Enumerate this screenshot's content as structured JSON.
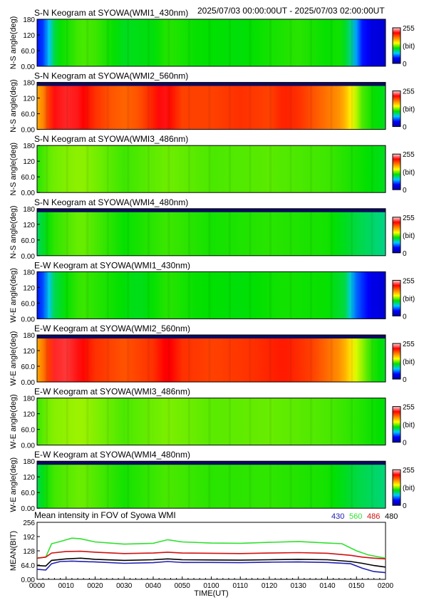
{
  "header": {
    "time_range": "2025/07/03 00:00:00UT - 2025/07/03 02:00:00UT"
  },
  "colors": {
    "colormap": [
      "#0000a0",
      "#0000ff",
      "#00c8ff",
      "#00e000",
      "#ffff00",
      "#ff8000",
      "#ff0000",
      "#ffd8d8"
    ],
    "series_430": "#2020b0",
    "series_560": "#30e030",
    "series_486": "#d01010",
    "series_480": "#000000"
  },
  "colorbar": {
    "max_label": "255",
    "unit_label": "(bit)",
    "min_label": "0"
  },
  "chart_data": [
    {
      "type": "heatmap",
      "title": "S-N Keogram at SYOWA(WMI1_430nm)",
      "ylabel": "N-S angle(deg)",
      "yticks": [
        "180",
        "120",
        "60.0",
        "0.00"
      ],
      "ylim": [
        0,
        180
      ],
      "xlim_minutes": [
        0,
        120
      ],
      "profile": [
        [
          0,
          40
        ],
        [
          3,
          50
        ],
        [
          5,
          95
        ],
        [
          8,
          110
        ],
        [
          12,
          115
        ],
        [
          15,
          120
        ],
        [
          20,
          118
        ],
        [
          30,
          105
        ],
        [
          40,
          108
        ],
        [
          45,
          115
        ],
        [
          55,
          110
        ],
        [
          70,
          108
        ],
        [
          80,
          112
        ],
        [
          90,
          115
        ],
        [
          100,
          110
        ],
        [
          105,
          112
        ],
        [
          108,
          90
        ],
        [
          112,
          40
        ],
        [
          116,
          25
        ],
        [
          120,
          20
        ]
      ],
      "top_dark": false
    },
    {
      "type": "heatmap",
      "title": "S-N Keogram at SYOWA(WMI2_560nm)",
      "ylabel": "N-S angle(deg)",
      "yticks": [
        "180",
        "120",
        "60.0",
        "0.00"
      ],
      "ylim": [
        0,
        180
      ],
      "xlim_minutes": [
        0,
        120
      ],
      "profile": [
        [
          0,
          170
        ],
        [
          3,
          185
        ],
        [
          5,
          220
        ],
        [
          10,
          225
        ],
        [
          15,
          222
        ],
        [
          20,
          205
        ],
        [
          25,
          195
        ],
        [
          30,
          190
        ],
        [
          35,
          195
        ],
        [
          40,
          210
        ],
        [
          43,
          225
        ],
        [
          46,
          215
        ],
        [
          50,
          200
        ],
        [
          60,
          200
        ],
        [
          70,
          205
        ],
        [
          80,
          200
        ],
        [
          85,
          210
        ],
        [
          90,
          205
        ],
        [
          100,
          185
        ],
        [
          105,
          175
        ],
        [
          108,
          150
        ],
        [
          112,
          120
        ],
        [
          116,
          110
        ],
        [
          120,
          105
        ]
      ],
      "top_dark": true
    },
    {
      "type": "heatmap",
      "title": "S-N Keogram at SYOWA(WMI3_486nm)",
      "ylabel": "N-S angle(deg)",
      "yticks": [
        "180",
        "120",
        "60.0",
        "0.00"
      ],
      "ylim": [
        0,
        180
      ],
      "xlim_minutes": [
        0,
        120
      ],
      "profile": [
        [
          0,
          115
        ],
        [
          5,
          125
        ],
        [
          15,
          130
        ],
        [
          30,
          118
        ],
        [
          45,
          125
        ],
        [
          60,
          120
        ],
        [
          80,
          122
        ],
        [
          100,
          118
        ],
        [
          110,
          112
        ],
        [
          120,
          105
        ]
      ],
      "top_dark": false
    },
    {
      "type": "heatmap",
      "title": "S-N Keogram at SYOWA(WMI4_480nm)",
      "ylabel": "N-S angle(deg)",
      "yticks": [
        "180",
        "120",
        "60.0",
        "0.00"
      ],
      "ylim": [
        0,
        180
      ],
      "xlim_minutes": [
        0,
        120
      ],
      "profile": [
        [
          0,
          95
        ],
        [
          5,
          115
        ],
        [
          15,
          125
        ],
        [
          30,
          110
        ],
        [
          45,
          118
        ],
        [
          60,
          112
        ],
        [
          80,
          115
        ],
        [
          100,
          112
        ],
        [
          110,
          100
        ],
        [
          120,
          90
        ]
      ],
      "top_dark": true
    },
    {
      "type": "heatmap",
      "title": "E-W Keogram at SYOWA(WMI1_430nm)",
      "ylabel": "W-E angle(deg)",
      "yticks": [
        "180",
        "120",
        "60.0",
        "0.00"
      ],
      "ylim": [
        0,
        180
      ],
      "xlim_minutes": [
        0,
        120
      ],
      "profile": [
        [
          0,
          40
        ],
        [
          3,
          55
        ],
        [
          5,
          95
        ],
        [
          10,
          110
        ],
        [
          15,
          118
        ],
        [
          25,
          112
        ],
        [
          35,
          105
        ],
        [
          45,
          115
        ],
        [
          55,
          110
        ],
        [
          70,
          108
        ],
        [
          85,
          112
        ],
        [
          100,
          110
        ],
        [
          106,
          100
        ],
        [
          110,
          55
        ],
        [
          115,
          30
        ],
        [
          120,
          20
        ]
      ],
      "top_dark": false
    },
    {
      "type": "heatmap",
      "title": "E-W Keogram at SYOWA(WMI2_560nm)",
      "ylabel": "W-E angle(deg)",
      "yticks": [
        "180",
        "120",
        "60.0",
        "0.00"
      ],
      "ylim": [
        0,
        180
      ],
      "xlim_minutes": [
        0,
        120
      ],
      "profile": [
        [
          0,
          170
        ],
        [
          3,
          190
        ],
        [
          6,
          225
        ],
        [
          10,
          228
        ],
        [
          15,
          220
        ],
        [
          20,
          205
        ],
        [
          30,
          195
        ],
        [
          40,
          205
        ],
        [
          45,
          222
        ],
        [
          50,
          205
        ],
        [
          60,
          200
        ],
        [
          75,
          205
        ],
        [
          85,
          212
        ],
        [
          95,
          200
        ],
        [
          105,
          175
        ],
        [
          110,
          140
        ],
        [
          115,
          115
        ],
        [
          120,
          105
        ]
      ],
      "top_dark": true
    },
    {
      "type": "heatmap",
      "title": "E-W Keogram at SYOWA(WMI3_486nm)",
      "ylabel": "W-E angle(deg)",
      "yticks": [
        "180",
        "120",
        "60.0",
        "0.00"
      ],
      "ylim": [
        0,
        180
      ],
      "xlim_minutes": [
        0,
        120
      ],
      "profile": [
        [
          0,
          118
        ],
        [
          5,
          128
        ],
        [
          15,
          132
        ],
        [
          30,
          120
        ],
        [
          45,
          127
        ],
        [
          60,
          122
        ],
        [
          80,
          124
        ],
        [
          100,
          120
        ],
        [
          110,
          115
        ],
        [
          120,
          108
        ]
      ],
      "top_dark": false
    },
    {
      "type": "heatmap",
      "title": "E-W Keogram at SYOWA(WMI4_480nm)",
      "ylabel": "W-E angle(deg)",
      "yticks": [
        "180",
        "120",
        "60.0",
        "0.00"
      ],
      "ylim": [
        0,
        180
      ],
      "xlim_minutes": [
        0,
        120
      ],
      "profile": [
        [
          0,
          98
        ],
        [
          5,
          118
        ],
        [
          15,
          125
        ],
        [
          30,
          112
        ],
        [
          45,
          120
        ],
        [
          60,
          115
        ],
        [
          80,
          116
        ],
        [
          100,
          112
        ],
        [
          110,
          100
        ],
        [
          120,
          92
        ]
      ],
      "top_dark": true
    },
    {
      "type": "line",
      "title": "Mean intensity in FOV of Syowa WMI",
      "xlabel": "TIME(UT)",
      "ylabel": "MEAN(BIT)",
      "ylim": [
        0,
        256
      ],
      "yticks": [
        "256",
        "192",
        "128",
        "64.0",
        "0.00"
      ],
      "xticks": [
        "0000",
        "0010",
        "0020",
        "0030",
        "0040",
        "0050",
        "0100",
        "0110",
        "0120",
        "0130",
        "0140",
        "0150",
        "0200"
      ],
      "xlim_minutes": [
        0,
        120
      ],
      "legend_position": "top-right",
      "series": [
        {
          "name": "430",
          "color": "#2020b0",
          "points": [
            [
              0,
              45
            ],
            [
              3,
              42
            ],
            [
              5,
              70
            ],
            [
              8,
              80
            ],
            [
              12,
              82
            ],
            [
              20,
              78
            ],
            [
              30,
              72
            ],
            [
              40,
              75
            ],
            [
              45,
              80
            ],
            [
              50,
              76
            ],
            [
              60,
              76
            ],
            [
              70,
              75
            ],
            [
              80,
              77
            ],
            [
              90,
              78
            ],
            [
              100,
              76
            ],
            [
              108,
              70
            ],
            [
              112,
              50
            ],
            [
              116,
              35
            ],
            [
              120,
              30
            ]
          ]
        },
        {
          "name": "560",
          "color": "#30e030",
          "points": [
            [
              0,
              95
            ],
            [
              3,
              100
            ],
            [
              5,
              160
            ],
            [
              8,
              170
            ],
            [
              12,
              185
            ],
            [
              15,
              182
            ],
            [
              20,
              168
            ],
            [
              30,
              158
            ],
            [
              40,
              162
            ],
            [
              45,
              178
            ],
            [
              50,
              168
            ],
            [
              60,
              163
            ],
            [
              70,
              162
            ],
            [
              80,
              166
            ],
            [
              90,
              170
            ],
            [
              100,
              163
            ],
            [
              105,
              160
            ],
            [
              110,
              128
            ],
            [
              114,
              110
            ],
            [
              118,
              100
            ],
            [
              120,
              95
            ]
          ]
        },
        {
          "name": "486",
          "color": "#d01010",
          "points": [
            [
              0,
              95
            ],
            [
              3,
              100
            ],
            [
              5,
              118
            ],
            [
              10,
              125
            ],
            [
              15,
              126
            ],
            [
              20,
              122
            ],
            [
              30,
              116
            ],
            [
              40,
              118
            ],
            [
              45,
              122
            ],
            [
              50,
              118
            ],
            [
              60,
              117
            ],
            [
              70,
              116
            ],
            [
              80,
              118
            ],
            [
              90,
              120
            ],
            [
              100,
              117
            ],
            [
              108,
              108
            ],
            [
              112,
              100
            ],
            [
              116,
              95
            ],
            [
              120,
              92
            ]
          ]
        },
        {
          "name": "480",
          "color": "#000000",
          "points": [
            [
              0,
              62
            ],
            [
              3,
              60
            ],
            [
              5,
              85
            ],
            [
              10,
              92
            ],
            [
              15,
              95
            ],
            [
              20,
              90
            ],
            [
              30,
              85
            ],
            [
              40,
              88
            ],
            [
              45,
              92
            ],
            [
              50,
              88
            ],
            [
              60,
              87
            ],
            [
              70,
              86
            ],
            [
              80,
              88
            ],
            [
              90,
              90
            ],
            [
              100,
              88
            ],
            [
              108,
              80
            ],
            [
              112,
              72
            ],
            [
              116,
              62
            ],
            [
              120,
              55
            ]
          ]
        }
      ]
    }
  ]
}
